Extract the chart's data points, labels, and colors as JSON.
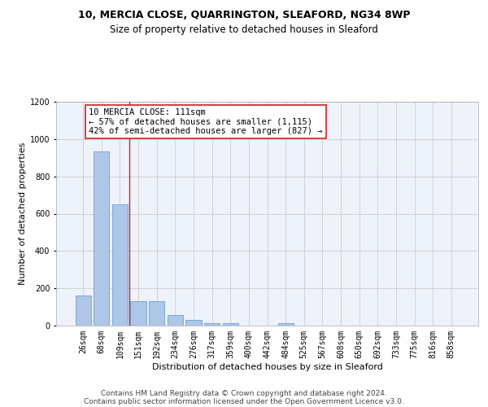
{
  "title1": "10, MERCIA CLOSE, QUARRINGTON, SLEAFORD, NG34 8WP",
  "title2": "Size of property relative to detached houses in Sleaford",
  "xlabel": "Distribution of detached houses by size in Sleaford",
  "ylabel": "Number of detached properties",
  "footer1": "Contains HM Land Registry data © Crown copyright and database right 2024.",
  "footer2": "Contains public sector information licensed under the Open Government Licence v3.0.",
  "categories": [
    "26sqm",
    "68sqm",
    "109sqm",
    "151sqm",
    "192sqm",
    "234sqm",
    "276sqm",
    "317sqm",
    "359sqm",
    "400sqm",
    "442sqm",
    "484sqm",
    "525sqm",
    "567sqm",
    "608sqm",
    "650sqm",
    "692sqm",
    "733sqm",
    "775sqm",
    "816sqm",
    "858sqm"
  ],
  "values": [
    160,
    935,
    650,
    130,
    130,
    58,
    30,
    15,
    12,
    0,
    0,
    15,
    0,
    0,
    0,
    0,
    0,
    0,
    0,
    0,
    0
  ],
  "bar_color": "#aec6e8",
  "bar_edge_color": "#5599cc",
  "vline_x": 2.5,
  "vline_color": "#cc2222",
  "annotation_text": "10 MERCIA CLOSE: 111sqm\n← 57% of detached houses are smaller (1,115)\n42% of semi-detached houses are larger (827) →",
  "annotation_box_color": "#ffffff",
  "annotation_box_edge": "#cc2222",
  "ylim": [
    0,
    1200
  ],
  "yticks": [
    0,
    200,
    400,
    600,
    800,
    1000,
    1200
  ],
  "grid_color": "#cccccc",
  "bg_color": "#eef2fb",
  "title1_fontsize": 9,
  "title2_fontsize": 8.5,
  "xlabel_fontsize": 8,
  "ylabel_fontsize": 8,
  "tick_fontsize": 7,
  "footer_fontsize": 6.5,
  "annotation_fontsize": 7.5
}
